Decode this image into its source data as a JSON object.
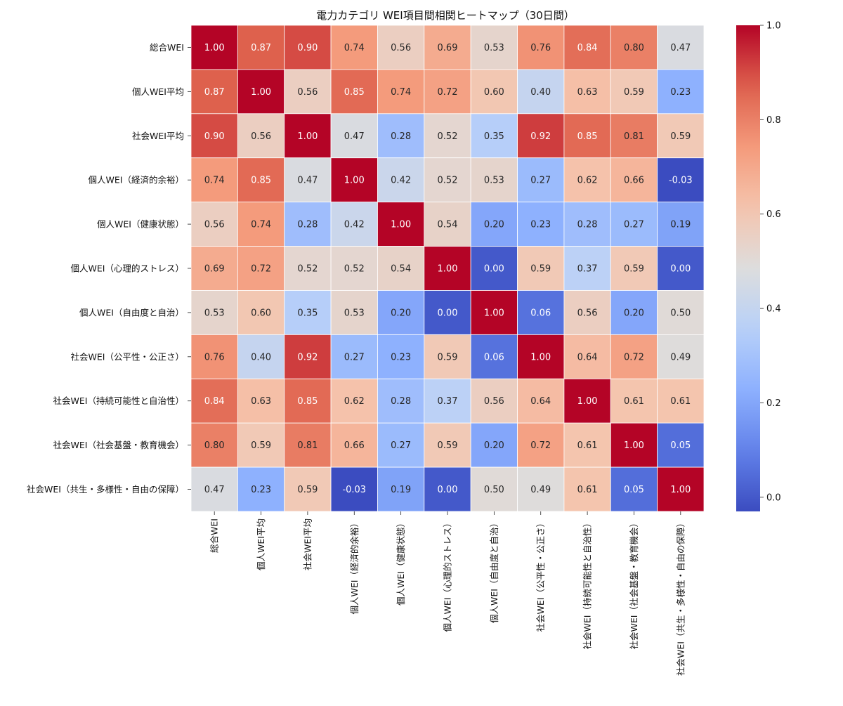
{
  "chart_data": {
    "type": "heatmap",
    "title": "電力カテゴリ WEI項目間相関ヒートマップ（30日間）",
    "labels": [
      "総合WEI",
      "個人WEI平均",
      "社会WEI平均",
      "個人WEI（経済的余裕）",
      "個人WEI（健康状態）",
      "個人WEI（心理的ストレス）",
      "個人WEI（自由度と自治）",
      "社会WEI（公平性・公正さ）",
      "社会WEI（持続可能性と自治性）",
      "社会WEI（社会基盤・教育機会）",
      "社会WEI（共生・多様性・自由の保障）"
    ],
    "matrix": [
      [
        1.0,
        0.87,
        0.9,
        0.74,
        0.56,
        0.69,
        0.53,
        0.76,
        0.84,
        0.8,
        0.47
      ],
      [
        0.87,
        1.0,
        0.56,
        0.85,
        0.74,
        0.72,
        0.6,
        0.4,
        0.63,
        0.59,
        0.23
      ],
      [
        0.9,
        0.56,
        1.0,
        0.47,
        0.28,
        0.52,
        0.35,
        0.92,
        0.85,
        0.81,
        0.59
      ],
      [
        0.74,
        0.85,
        0.47,
        1.0,
        0.42,
        0.52,
        0.53,
        0.27,
        0.62,
        0.66,
        -0.03
      ],
      [
        0.56,
        0.74,
        0.28,
        0.42,
        1.0,
        0.54,
        0.2,
        0.23,
        0.28,
        0.27,
        0.19
      ],
      [
        0.69,
        0.72,
        0.52,
        0.52,
        0.54,
        1.0,
        0.0,
        0.59,
        0.37,
        0.59,
        0.0
      ],
      [
        0.53,
        0.6,
        0.35,
        0.53,
        0.2,
        0.0,
        1.0,
        0.06,
        0.56,
        0.2,
        0.5
      ],
      [
        0.76,
        0.4,
        0.92,
        0.27,
        0.23,
        0.59,
        0.06,
        1.0,
        0.64,
        0.72,
        0.49
      ],
      [
        0.84,
        0.63,
        0.85,
        0.62,
        0.28,
        0.37,
        0.56,
        0.64,
        1.0,
        0.61,
        0.61
      ],
      [
        0.8,
        0.59,
        0.81,
        0.66,
        0.27,
        0.59,
        0.2,
        0.72,
        0.61,
        1.0,
        0.05
      ],
      [
        0.47,
        0.23,
        0.59,
        -0.03,
        0.19,
        0.0,
        0.5,
        0.49,
        0.61,
        0.05,
        1.0
      ]
    ],
    "value_range": [
      -0.03,
      1.0
    ],
    "colormap": "coolwarm",
    "colorbar_ticks": [
      0.0,
      0.2,
      0.4,
      0.6,
      0.8,
      1.0
    ],
    "colorbar_tick_labels": [
      "0.0",
      "0.2",
      "0.4",
      "0.6",
      "0.8",
      "1.0"
    ],
    "legend_position": "right",
    "grid": false
  }
}
